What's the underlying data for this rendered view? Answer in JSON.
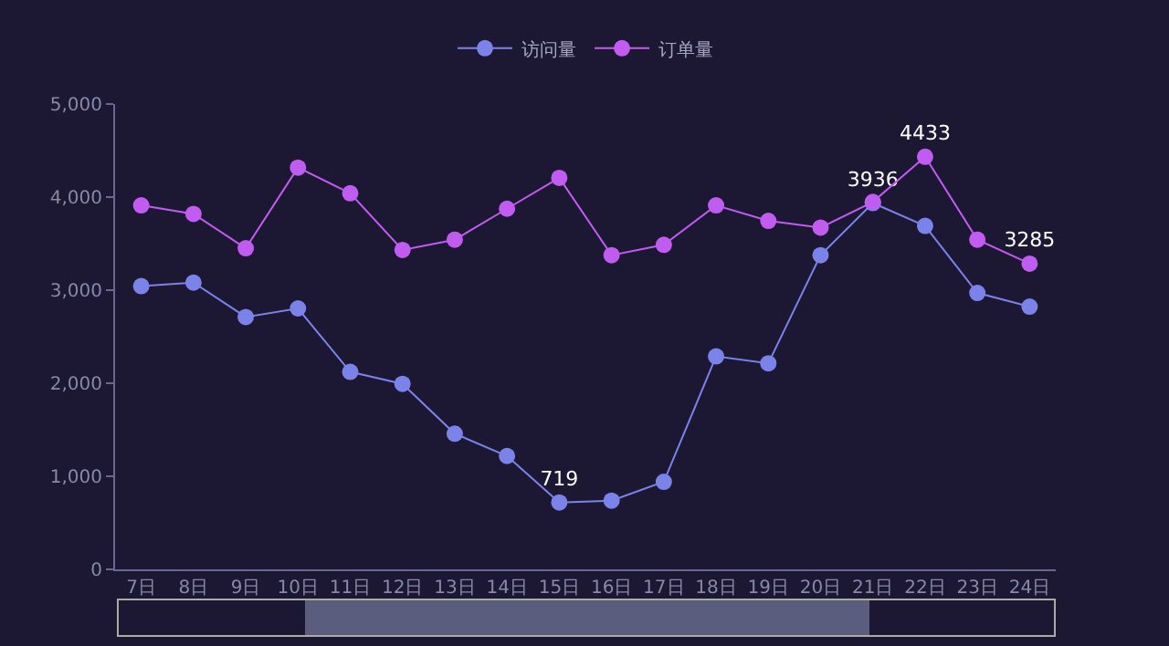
{
  "chart_data": {
    "type": "line",
    "categories": [
      "7日",
      "8日",
      "9日",
      "10日",
      "11日",
      "12日",
      "13日",
      "14日",
      "15日",
      "16日",
      "17日",
      "18日",
      "19日",
      "20日",
      "21日",
      "22日",
      "23日",
      "24日"
    ],
    "series": [
      {
        "name": "访问量",
        "color": "#7b83e8",
        "values": [
          3044,
          3081,
          2712,
          2804,
          2122,
          1993,
          1458,
          1218,
          719,
          738,
          941,
          2288,
          2214,
          3376,
          3936,
          3690,
          2970,
          2823
        ],
        "value_labels": [
          null,
          null,
          null,
          null,
          null,
          null,
          null,
          null,
          "719",
          null,
          null,
          null,
          null,
          null,
          "3936",
          null,
          null,
          null
        ]
      },
      {
        "name": "订单量",
        "color": "#c05cf0",
        "values": [
          3911,
          3819,
          3450,
          4317,
          4041,
          3432,
          3542,
          3875,
          4207,
          3376,
          3487,
          3911,
          3745,
          3672,
          3948,
          4433,
          3542,
          3285
        ],
        "value_labels": [
          null,
          null,
          null,
          null,
          null,
          null,
          null,
          null,
          null,
          null,
          null,
          null,
          null,
          null,
          null,
          "4433",
          null,
          "3285"
        ]
      }
    ],
    "ylim": [
      0,
      5000
    ],
    "yticks": [
      0,
      {
        "value": 1000,
        "label": "1,000"
      },
      {
        "value": 2000,
        "label": "2,000"
      },
      {
        "value": 3000,
        "label": "3,000"
      },
      {
        "value": 4000,
        "label": "4,000"
      },
      {
        "value": 5000,
        "label": "5,000"
      }
    ],
    "grid": false,
    "legend": "top",
    "marker": "circle",
    "line_style": "solid"
  }
}
